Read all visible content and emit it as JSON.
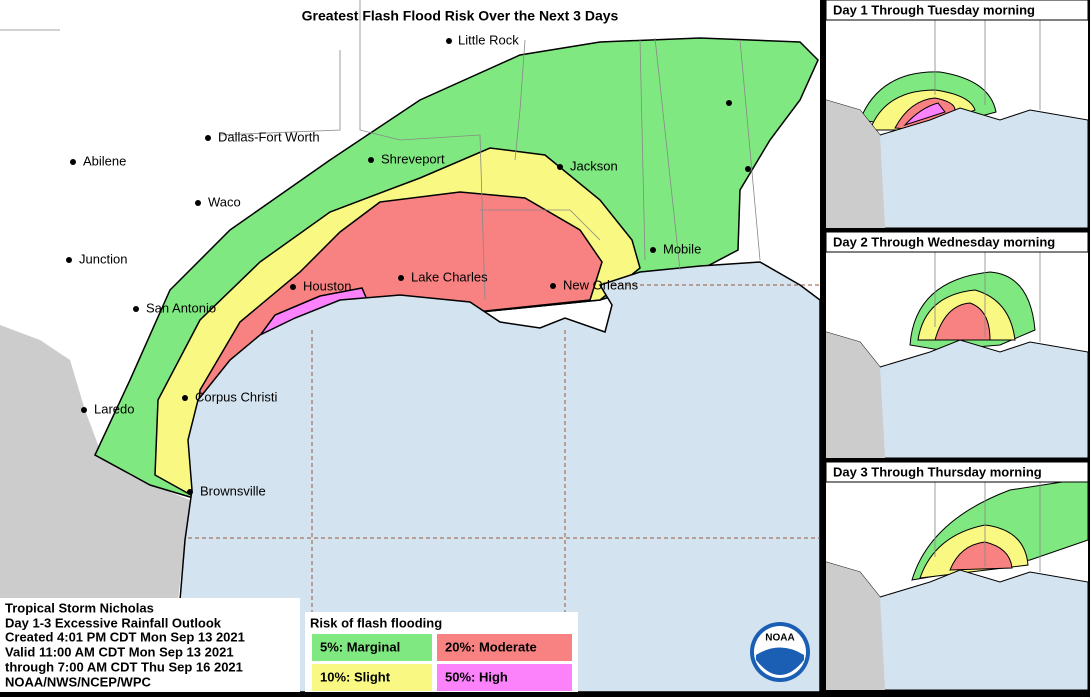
{
  "title": "Greatest Flash Flood Risk Over the Next 3 Days",
  "cities": [
    "Little Rock",
    "Dallas-Fort Worth",
    "Abilene",
    "Shreveport",
    "Jackson",
    "Waco",
    "Junction",
    "Mobile",
    "Lake Charles",
    "Houston",
    "New Orleans",
    "San Antonio",
    "Corpus Christi",
    "Laredo",
    "Brownsville"
  ],
  "insets": [
    {
      "title": "Day 1 Through Tuesday morning"
    },
    {
      "title": "Day 2 Through Wednesday morning"
    },
    {
      "title": "Day 3 Through Thursday morning"
    }
  ],
  "info": [
    "Tropical Storm Nicholas",
    "Day 1-3 Excessive Rainfall Outlook",
    "Created 4:01 PM CDT Mon Sep 13 2021",
    "Valid 11:00 AM CDT Mon Sep 13 2021",
    "through 7:00 AM CDT Thu Sep 16 2021",
    "NOAA/NWS/NCEP/WPC"
  ],
  "legend": {
    "title": "Risk of flash flooding",
    "items": [
      {
        "label": "5%: Marginal",
        "color": "#80e880"
      },
      {
        "label": "20%: Moderate",
        "color": "#f88282"
      },
      {
        "label": "10%: Slight",
        "color": "#f8f882"
      },
      {
        "label": "50%: High",
        "color": "#fc82fc"
      }
    ]
  },
  "logo": "NOAA"
}
